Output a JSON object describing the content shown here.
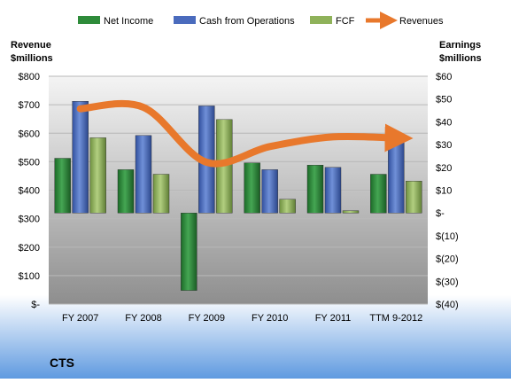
{
  "chart_data": {
    "type": "bar",
    "title": "CTS",
    "legend_position": "top",
    "categories": [
      "FY 2007",
      "FY 2008",
      "FY 2009",
      "FY 2010",
      "FY 2011",
      "TTM 9-2012"
    ],
    "left_axis": {
      "label_line1": "Revenue",
      "label_line2": "$millions",
      "range": [
        0,
        800
      ],
      "ticks": [
        0,
        100,
        200,
        300,
        400,
        500,
        600,
        700,
        800
      ],
      "tick_labels": [
        "$-",
        "$100",
        "$200",
        "$300",
        "$400",
        "$500",
        "$600",
        "$700",
        "$800"
      ]
    },
    "right_axis": {
      "label_line1": "Earnings",
      "label_line2": "$millions",
      "range": [
        -40,
        60
      ],
      "ticks": [
        -40,
        -30,
        -20,
        -10,
        0,
        10,
        20,
        30,
        40,
        50,
        60
      ],
      "tick_labels": [
        "$(40)",
        "$(30)",
        "$(20)",
        "$(10)",
        "$-",
        "$10",
        "$20",
        "$30",
        "$40",
        "$50",
        "$60"
      ]
    },
    "series": [
      {
        "name": "Net Income",
        "type": "bar",
        "axis": "right",
        "color": "#2e8b3a",
        "values": [
          24,
          19,
          -34,
          22,
          21,
          17
        ]
      },
      {
        "name": "Cash from Operations",
        "type": "bar",
        "axis": "right",
        "color": "#4a6bbd",
        "values": [
          49,
          34,
          47,
          19,
          20,
          33
        ]
      },
      {
        "name": "FCF",
        "type": "bar",
        "axis": "right",
        "color": "#8fb25a",
        "values": [
          33,
          17,
          41,
          6,
          1,
          14
        ]
      },
      {
        "name": "Revenues",
        "type": "line",
        "axis": "left",
        "color": "#e8782c",
        "values": [
          686,
          691,
          498,
          553,
          587,
          583
        ]
      }
    ]
  }
}
